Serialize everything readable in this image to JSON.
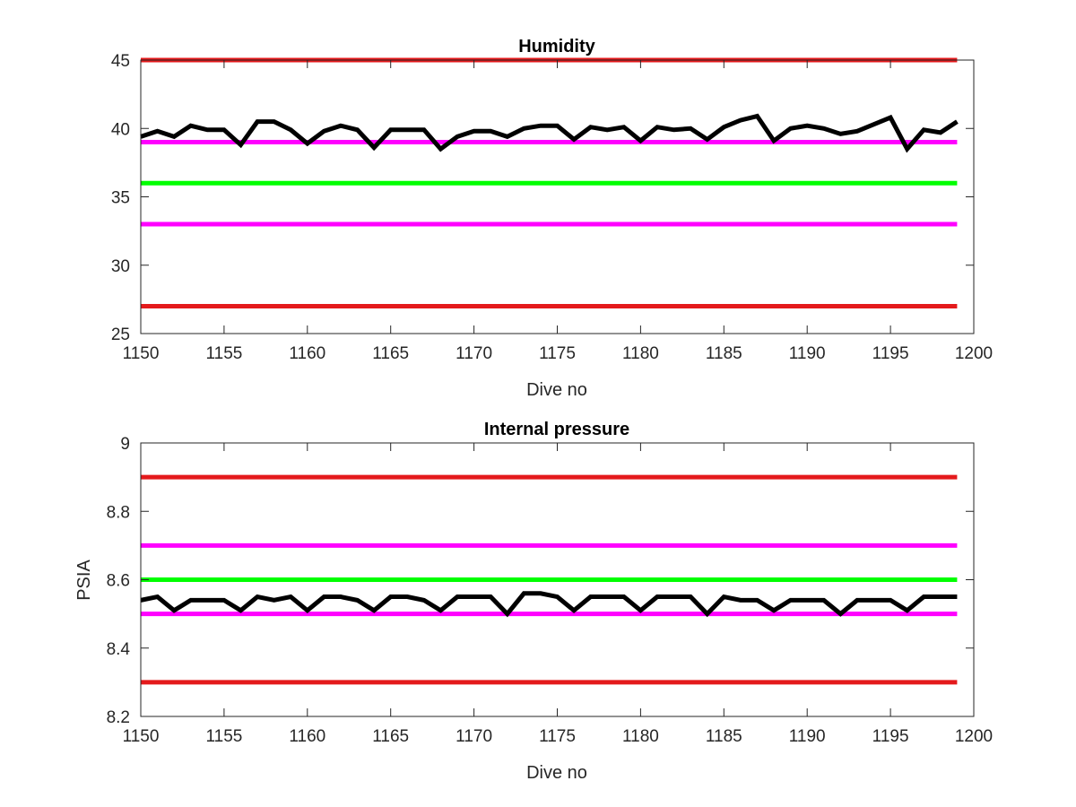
{
  "figure": {
    "background": "#ffffff"
  },
  "chart_data": [
    {
      "type": "line",
      "title": "Humidity",
      "xlabel": "Dive no",
      "ylabel": "",
      "xlim": [
        1150,
        1200
      ],
      "ylim": [
        25,
        45
      ],
      "xticks": [
        1150,
        1155,
        1160,
        1165,
        1170,
        1175,
        1180,
        1185,
        1190,
        1195,
        1200
      ],
      "yticks": [
        25,
        30,
        35,
        40,
        45
      ],
      "grid": false,
      "axis_color": "#262626",
      "thresholds": [
        {
          "value": 45,
          "color": "#e41a1c",
          "x_range": [
            1150,
            1199
          ]
        },
        {
          "value": 39,
          "color": "#ff00ff",
          "x_range": [
            1150,
            1199
          ]
        },
        {
          "value": 36,
          "color": "#00ff00",
          "x_range": [
            1150,
            1199
          ]
        },
        {
          "value": 33,
          "color": "#ff00ff",
          "x_range": [
            1150,
            1199
          ]
        },
        {
          "value": 27,
          "color": "#e41a1c",
          "x_range": [
            1150,
            1199
          ]
        }
      ],
      "series": [
        {
          "color": "#000000",
          "x": [
            1150,
            1151,
            1152,
            1153,
            1154,
            1155,
            1156,
            1157,
            1158,
            1159,
            1160,
            1161,
            1162,
            1163,
            1164,
            1165,
            1166,
            1167,
            1168,
            1169,
            1170,
            1171,
            1172,
            1173,
            1174,
            1175,
            1176,
            1177,
            1178,
            1179,
            1180,
            1181,
            1182,
            1183,
            1184,
            1185,
            1186,
            1187,
            1188,
            1189,
            1190,
            1191,
            1192,
            1193,
            1194,
            1195,
            1196,
            1197,
            1198,
            1199
          ],
          "values": [
            39.4,
            39.8,
            39.4,
            40.2,
            39.9,
            39.9,
            38.8,
            40.5,
            40.5,
            39.9,
            38.9,
            39.8,
            40.2,
            39.9,
            38.6,
            39.9,
            39.9,
            39.9,
            38.5,
            39.4,
            39.8,
            39.8,
            39.4,
            40.0,
            40.2,
            40.2,
            39.2,
            40.1,
            39.9,
            40.1,
            39.1,
            40.1,
            39.9,
            40.0,
            39.2,
            40.1,
            40.6,
            40.9,
            39.1,
            40.0,
            40.2,
            40.0,
            39.6,
            39.8,
            40.3,
            40.8,
            38.5,
            39.9,
            39.7,
            40.5
          ]
        }
      ]
    },
    {
      "type": "line",
      "title": "Internal pressure",
      "xlabel": "Dive no",
      "ylabel": "PSIA",
      "xlim": [
        1150,
        1200
      ],
      "ylim": [
        8.2,
        9.0
      ],
      "xticks": [
        1150,
        1155,
        1160,
        1165,
        1170,
        1175,
        1180,
        1185,
        1190,
        1195,
        1200
      ],
      "yticks": [
        8.2,
        8.4,
        8.6,
        8.8,
        9
      ],
      "ytick_labels": [
        "8.2",
        "8.4",
        "8.6",
        "8.8",
        "9"
      ],
      "grid": false,
      "axis_color": "#262626",
      "thresholds": [
        {
          "value": 8.9,
          "color": "#e41a1c",
          "x_range": [
            1150,
            1199
          ]
        },
        {
          "value": 8.7,
          "color": "#ff00ff",
          "x_range": [
            1150,
            1199
          ]
        },
        {
          "value": 8.6,
          "color": "#00ff00",
          "x_range": [
            1150,
            1199
          ]
        },
        {
          "value": 8.5,
          "color": "#ff00ff",
          "x_range": [
            1150,
            1199
          ]
        },
        {
          "value": 8.3,
          "color": "#e41a1c",
          "x_range": [
            1150,
            1199
          ]
        }
      ],
      "series": [
        {
          "color": "#000000",
          "x": [
            1150,
            1151,
            1152,
            1153,
            1154,
            1155,
            1156,
            1157,
            1158,
            1159,
            1160,
            1161,
            1162,
            1163,
            1164,
            1165,
            1166,
            1167,
            1168,
            1169,
            1170,
            1171,
            1172,
            1173,
            1174,
            1175,
            1176,
            1177,
            1178,
            1179,
            1180,
            1181,
            1182,
            1183,
            1184,
            1185,
            1186,
            1187,
            1188,
            1189,
            1190,
            1191,
            1192,
            1193,
            1194,
            1195,
            1196,
            1197,
            1198,
            1199
          ],
          "values": [
            8.54,
            8.55,
            8.51,
            8.54,
            8.54,
            8.54,
            8.51,
            8.55,
            8.54,
            8.55,
            8.51,
            8.55,
            8.55,
            8.54,
            8.51,
            8.55,
            8.55,
            8.54,
            8.51,
            8.55,
            8.55,
            8.55,
            8.5,
            8.56,
            8.56,
            8.55,
            8.51,
            8.55,
            8.55,
            8.55,
            8.51,
            8.55,
            8.55,
            8.55,
            8.5,
            8.55,
            8.54,
            8.54,
            8.51,
            8.54,
            8.54,
            8.54,
            8.5,
            8.54,
            8.54,
            8.54,
            8.51,
            8.55,
            8.55,
            8.55
          ]
        }
      ]
    }
  ]
}
